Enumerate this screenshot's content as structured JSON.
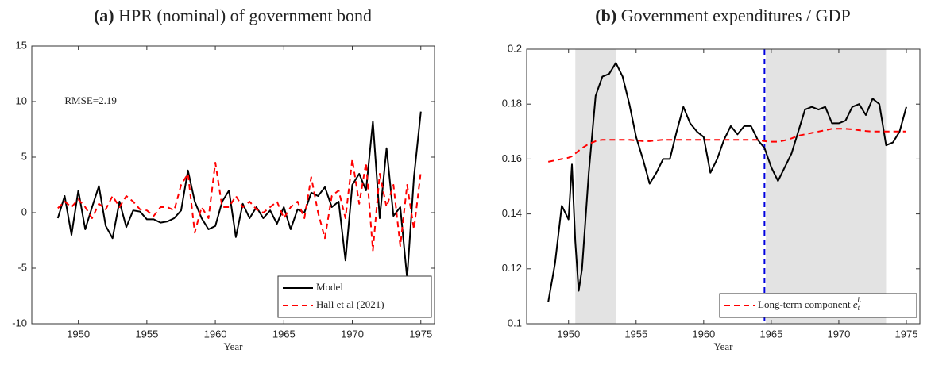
{
  "chart_data": [
    {
      "type": "line",
      "label": "(a)",
      "title": "HPR (nominal) of government bond",
      "xlabel": "Year",
      "x": [
        1948.5,
        1949,
        1949.5,
        1950,
        1950.5,
        1951,
        1951.5,
        1952,
        1952.5,
        1953,
        1953.5,
        1954,
        1954.5,
        1955,
        1955.5,
        1956,
        1956.5,
        1957,
        1957.5,
        1958,
        1958.5,
        1959,
        1959.5,
        1960,
        1960.5,
        1961,
        1961.5,
        1962,
        1962.5,
        1963,
        1963.5,
        1964,
        1964.5,
        1965,
        1965.5,
        1966,
        1966.5,
        1967,
        1967.5,
        1968,
        1968.5,
        1969,
        1969.5,
        1970,
        1970.5,
        1971,
        1971.5,
        1972,
        1972.5,
        1973,
        1973.5,
        1974,
        1974.5,
        1975
      ],
      "series": [
        {
          "name": "Model",
          "color": "#000000",
          "dash": "solid",
          "values": [
            -0.5,
            1.5,
            -2,
            2,
            -1.5,
            0.5,
            2.4,
            -1.2,
            -2.3,
            1,
            -1.3,
            0.2,
            0.1,
            -0.6,
            -0.6,
            -0.9,
            -0.8,
            -0.5,
            0.2,
            3.8,
            1,
            -0.5,
            -1.5,
            -1.2,
            1,
            2,
            -2.2,
            0.8,
            -0.5,
            0.5,
            -0.5,
            0.2,
            -1,
            0.5,
            -1.5,
            0.3,
            0,
            1.8,
            1.5,
            2.3,
            0.5,
            1,
            -4.3,
            2.5,
            3.5,
            2,
            8.2,
            -0.5,
            5.8,
            -0.3,
            0.5,
            -5.9,
            3.2,
            9.1
          ]
        },
        {
          "name": "Hall et al (2021)",
          "color": "#ff0000",
          "dash": "dashed",
          "values": [
            0.4,
            1,
            0.5,
            1.2,
            0.5,
            -0.5,
            0.8,
            0.3,
            1.5,
            0.5,
            1.5,
            1,
            0.3,
            0.2,
            -0.3,
            0.5,
            0.5,
            0.2,
            2.5,
            3.5,
            -1.8,
            0.5,
            -0.5,
            4.5,
            0.5,
            0.5,
            1.5,
            0.5,
            1,
            0.3,
            0,
            0.5,
            1,
            -0.5,
            0.5,
            1,
            -0.5,
            3.2,
            0,
            -2.3,
            1.5,
            2,
            -0.5,
            4.8,
            0.8,
            4.5,
            -3.4,
            3.5,
            0.5,
            2.5,
            -3,
            2.5,
            -1.5,
            3.7
          ]
        }
      ],
      "xlim": [
        1946.6,
        1976
      ],
      "ylim": [
        -10,
        15
      ],
      "xticks": [
        1950,
        1955,
        1960,
        1965,
        1970,
        1975
      ],
      "yticks": [
        -10,
        -5,
        0,
        5,
        10,
        15
      ],
      "annotation": {
        "text": "RMSE=2.19",
        "x": 1949,
        "y": 10
      },
      "legend": "lower right"
    },
    {
      "type": "line",
      "label": "(b)",
      "title": "Government expenditures / GDP",
      "xlabel": "Year",
      "x": [
        1948.5,
        1949,
        1949.5,
        1950,
        1950.25,
        1950.5,
        1950.75,
        1951,
        1951.5,
        1952,
        1952.5,
        1953,
        1953.5,
        1954,
        1954.5,
        1955,
        1955.5,
        1956,
        1956.5,
        1957,
        1957.5,
        1958,
        1958.5,
        1959,
        1959.5,
        1960,
        1960.5,
        1961,
        1961.5,
        1962,
        1962.5,
        1963,
        1963.5,
        1964,
        1964.5,
        1965,
        1965.5,
        1966,
        1966.5,
        1967,
        1967.5,
        1968,
        1968.5,
        1969,
        1969.5,
        1970,
        1970.5,
        1971,
        1971.5,
        1972,
        1972.5,
        1973,
        1973.5,
        1974,
        1974.5,
        1975
      ],
      "series": [
        {
          "color": "#000000",
          "dash": "solid",
          "values": [
            0.108,
            0.122,
            0.143,
            0.138,
            0.158,
            0.13,
            0.112,
            0.12,
            0.155,
            0.183,
            0.19,
            0.191,
            0.195,
            0.19,
            0.18,
            0.168,
            0.16,
            0.151,
            0.155,
            0.16,
            0.16,
            0.17,
            0.179,
            0.173,
            0.17,
            0.168,
            0.155,
            0.16,
            0.167,
            0.172,
            0.169,
            0.172,
            0.172,
            0.167,
            0.164,
            0.157,
            0.152,
            0.157,
            0.162,
            0.17,
            0.178,
            0.179,
            0.178,
            0.179,
            0.173,
            0.173,
            0.174,
            0.179,
            0.18,
            0.176,
            0.182,
            0.18,
            0.165,
            0.166,
            0.17,
            0.179
          ]
        },
        {
          "name": "Long-term component ",
          "name_math": {
            "base": "e",
            "sub": "t",
            "sup": "L"
          },
          "color": "#ff0000",
          "dash": "dashed",
          "values": [
            0.159,
            0.1595,
            0.16,
            0.1605,
            0.161,
            0.162,
            0.163,
            0.164,
            0.1655,
            0.1665,
            0.167,
            0.167,
            0.167,
            0.167,
            0.167,
            0.1668,
            0.1665,
            0.1665,
            0.1668,
            0.167,
            0.167,
            0.167,
            0.167,
            0.167,
            0.167,
            0.167,
            0.167,
            0.167,
            0.167,
            0.167,
            0.167,
            0.167,
            0.167,
            0.167,
            0.1665,
            0.1663,
            0.1663,
            0.1668,
            0.1675,
            0.1685,
            0.169,
            0.1695,
            0.17,
            0.1705,
            0.171,
            0.171,
            0.171,
            0.1708,
            0.1705,
            0.1702,
            0.17,
            0.17,
            0.17,
            0.17,
            0.17,
            0.17
          ]
        }
      ],
      "xlim": [
        1946.9,
        1976
      ],
      "ylim": [
        0.1,
        0.2
      ],
      "xticks": [
        1950,
        1955,
        1960,
        1965,
        1970,
        1975
      ],
      "yticks": [
        0.1,
        0.12,
        0.14,
        0.16,
        0.18,
        0.2
      ],
      "shaded_periods": [
        [
          1950.5,
          1953.5
        ],
        [
          1964.6,
          1973.5
        ]
      ],
      "shade_color": "#e3e3e3",
      "vline": {
        "x": 1964.5,
        "color": "#0000dd"
      },
      "legend": "lower right"
    }
  ]
}
